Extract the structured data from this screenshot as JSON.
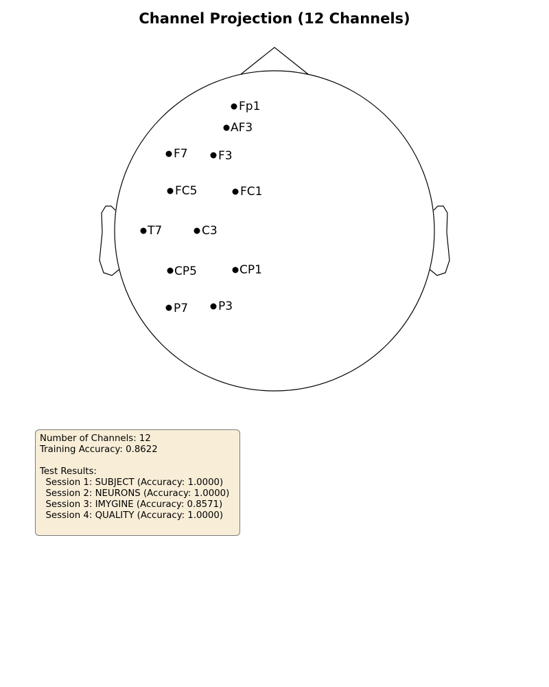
{
  "title": "Channel Projection (12 Channels)",
  "colors": {
    "outline": "#000000",
    "marker": "#000000",
    "box_background": "#f8eed8",
    "box_border": "#7a7a7a"
  },
  "channels": [
    {
      "label": "Fp1"
    },
    {
      "label": "AF3"
    },
    {
      "label": "F7"
    },
    {
      "label": "F3"
    },
    {
      "label": "FC5"
    },
    {
      "label": "FC1"
    },
    {
      "label": "T7"
    },
    {
      "label": "C3"
    },
    {
      "label": "CP5"
    },
    {
      "label": "CP1"
    },
    {
      "label": "P7"
    },
    {
      "label": "P3"
    }
  ],
  "results": {
    "num_channels_text": "Number of Channels: 12",
    "training_accuracy_text": "Training Accuracy: 0.8622",
    "test_results_heading": "Test Results:",
    "sessions": [
      "  Session 1: SUBJECT (Accuracy: 1.0000)",
      "  Session 2: NEURONS (Accuracy: 1.0000)",
      "  Session 3: IMYGINE (Accuracy: 0.8571)",
      "  Session 4: QUALITY (Accuracy: 1.0000)"
    ]
  }
}
